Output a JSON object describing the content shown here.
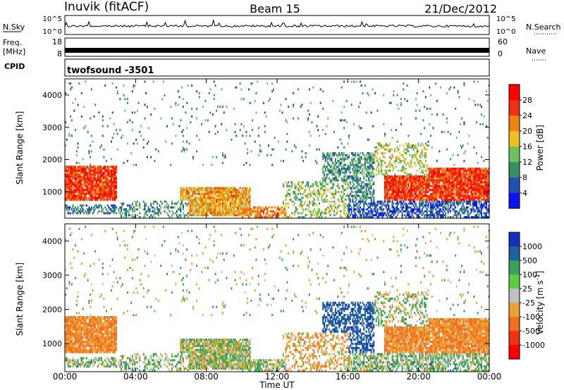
{
  "header": {
    "title_left": "Inuvik (fitACF)",
    "title_center": "Beam 15",
    "title_right": "21/Dec/2012"
  },
  "status_panels": {
    "nsky_label": "N.Sky",
    "nsky_ticks": [
      "10^5",
      "10^0"
    ],
    "nsearch_label": "N.Search",
    "freq_label_line1": "Freq.",
    "freq_label_line2": "[MHz]",
    "freq_ticks": [
      "18",
      "8"
    ],
    "nave_label": "Nave",
    "nave_ticks": [
      "60",
      "0"
    ],
    "cpid_label": "CPID",
    "cpid_value": "twofsound  -3501"
  },
  "chart_data": [
    {
      "type": "heatmap",
      "name": "power",
      "xlabel": "Time UT",
      "ylabel": "Slant Range [km]",
      "x_ticks": [
        "00:00",
        "04:00",
        "08:00",
        "12:00",
        "16:00",
        "20:00",
        "00:00"
      ],
      "y_ticks": [
        1000,
        2000,
        3000,
        4000
      ],
      "xlim_hours": [
        0,
        24
      ],
      "ylim_km": [
        180,
        4500
      ],
      "colorbar_label": "Power [dB]",
      "colorbar_ticks": [
        4,
        8,
        12,
        16,
        20,
        24,
        28
      ],
      "colorbar_range": [
        0,
        32
      ],
      "colors": [
        "#1010ff",
        "#2050b0",
        "#3a8f60",
        "#70c060",
        "#f0c020",
        "#f08010",
        "#f03010",
        "#ff0000"
      ]
    },
    {
      "type": "heatmap",
      "name": "velocity",
      "xlabel": "Time UT",
      "ylabel": "Slant Range [km]",
      "x_ticks": [
        "00:00",
        "04:00",
        "08:00",
        "12:00",
        "16:00",
        "20:00",
        "00:00"
      ],
      "y_ticks": [
        1000,
        2000,
        3000,
        4000
      ],
      "xlim_hours": [
        0,
        24
      ],
      "ylim_km": [
        180,
        4500
      ],
      "colorbar_label_text": "Velocity  [m s",
      "colorbar_label_sup": "-1",
      "colorbar_label_end": "]",
      "colorbar_ticks": [
        "1000",
        "500",
        "100",
        "25",
        "-25",
        "-100",
        "-500",
        "-1000"
      ],
      "colors": [
        "#1530c0",
        "#2060a0",
        "#3aa060",
        "#60cc40",
        "#c0c0c0",
        "#f0a030",
        "#f07020",
        "#f03010",
        "#ff0000"
      ]
    }
  ],
  "axis": {
    "xlabel": "Time UT"
  }
}
